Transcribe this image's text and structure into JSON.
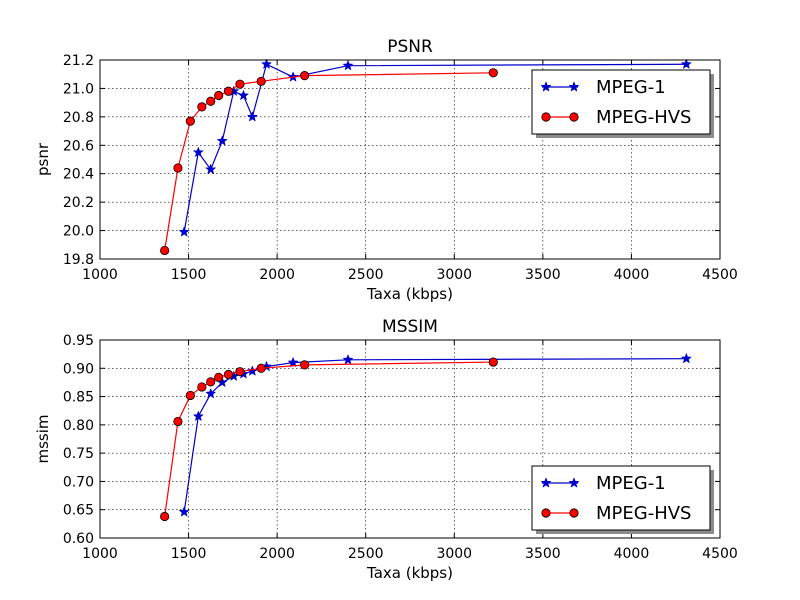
{
  "chart_data": [
    {
      "type": "line",
      "title": "PSNR",
      "xlabel": "Taxa (kbps)",
      "ylabel": "psnr",
      "xlim": [
        1000,
        4500
      ],
      "ylim": [
        19.8,
        21.2
      ],
      "xticks": [
        "1000",
        "1500",
        "2000",
        "2500",
        "3000",
        "3500",
        "4000",
        "4500"
      ],
      "yticks": [
        "19.8",
        "20.0",
        "20.2",
        "20.4",
        "20.6",
        "20.8",
        "21.0",
        "21.2"
      ],
      "grid": true,
      "legend_position": "top-right",
      "series": [
        {
          "name": "MPEG-1",
          "color": "#0000cc",
          "marker": "star",
          "x": [
            1475,
            1555,
            1625,
            1690,
            1755,
            1810,
            1860,
            1940,
            2090,
            2400,
            4310
          ],
          "y": [
            19.99,
            20.55,
            20.43,
            20.63,
            20.98,
            20.95,
            20.8,
            21.17,
            21.08,
            21.16,
            21.17
          ]
        },
        {
          "name": "MPEG-HVS",
          "color": "#ff0000",
          "marker": "circle",
          "x": [
            1365,
            1440,
            1510,
            1575,
            1625,
            1670,
            1725,
            1790,
            1910,
            2155,
            3220
          ],
          "y": [
            19.86,
            20.44,
            20.77,
            20.87,
            20.91,
            20.95,
            20.98,
            21.03,
            21.05,
            21.09,
            21.11
          ]
        }
      ]
    },
    {
      "type": "line",
      "title": "MSSIM",
      "xlabel": "Taxa (kbps)",
      "ylabel": "mssim",
      "xlim": [
        1000,
        4500
      ],
      "ylim": [
        0.6,
        0.95
      ],
      "xticks": [
        "1000",
        "1500",
        "2000",
        "2500",
        "3000",
        "3500",
        "4000",
        "4500"
      ],
      "yticks": [
        "0.60",
        "0.65",
        "0.70",
        "0.75",
        "0.80",
        "0.85",
        "0.90",
        "0.95"
      ],
      "grid": true,
      "legend_position": "bottom-right",
      "series": [
        {
          "name": "MPEG-1",
          "color": "#0000cc",
          "marker": "star",
          "x": [
            1475,
            1555,
            1625,
            1690,
            1755,
            1810,
            1860,
            1940,
            2090,
            2400,
            4310
          ],
          "y": [
            0.646,
            0.815,
            0.855,
            0.875,
            0.886,
            0.89,
            0.895,
            0.903,
            0.91,
            0.915,
            0.917
          ]
        },
        {
          "name": "MPEG-HVS",
          "color": "#ff0000",
          "marker": "circle",
          "x": [
            1365,
            1440,
            1510,
            1575,
            1625,
            1670,
            1725,
            1790,
            1910,
            2155,
            3220
          ],
          "y": [
            0.638,
            0.806,
            0.852,
            0.867,
            0.876,
            0.884,
            0.889,
            0.894,
            0.9,
            0.906,
            0.911
          ]
        }
      ]
    }
  ]
}
